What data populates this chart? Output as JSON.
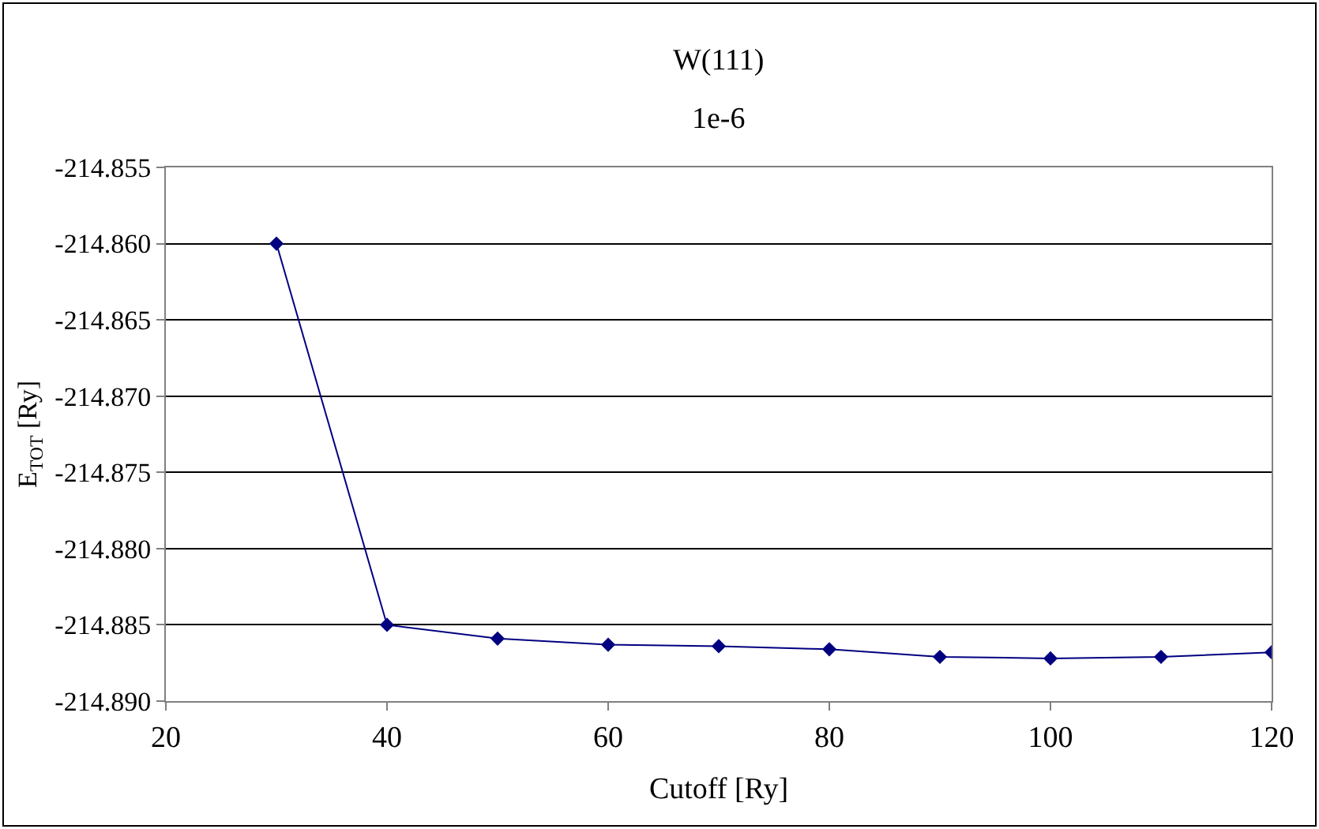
{
  "chart_data": {
    "type": "line",
    "title": "W(111)",
    "subtitle": "1e-6",
    "xlabel": "Cutoff [Ry]",
    "ylabel": "E$_{TOT}$ [Ry]",
    "x": [
      30,
      40,
      50,
      60,
      70,
      80,
      90,
      100,
      110,
      120
    ],
    "series": [
      {
        "color": "#000080",
        "values": [
          -214.86,
          -214.885,
          -214.8859,
          -214.8863,
          -214.8864,
          -214.8866,
          -214.8871,
          -214.8872,
          -214.8871,
          -214.8868
        ]
      }
    ],
    "xlim": [
      20,
      120
    ],
    "xticks": [
      20,
      40,
      60,
      80,
      100,
      120
    ],
    "ylim": [
      -214.89,
      -214.855
    ],
    "yticks": [
      {
        "value": -214.89,
        "label": "-214.890"
      },
      {
        "value": -214.885,
        "label": "-214.885"
      },
      {
        "value": -214.88,
        "label": "-214.880"
      },
      {
        "value": -214.875,
        "label": "-214.875"
      },
      {
        "value": -214.87,
        "label": "-214.870"
      },
      {
        "value": -214.865,
        "label": "-214.865"
      },
      {
        "value": -214.86,
        "label": "-214.860"
      },
      {
        "value": -214.855,
        "label": "-214.855"
      }
    ],
    "grid": "y",
    "marker": "diamond",
    "line_style": "solid"
  }
}
